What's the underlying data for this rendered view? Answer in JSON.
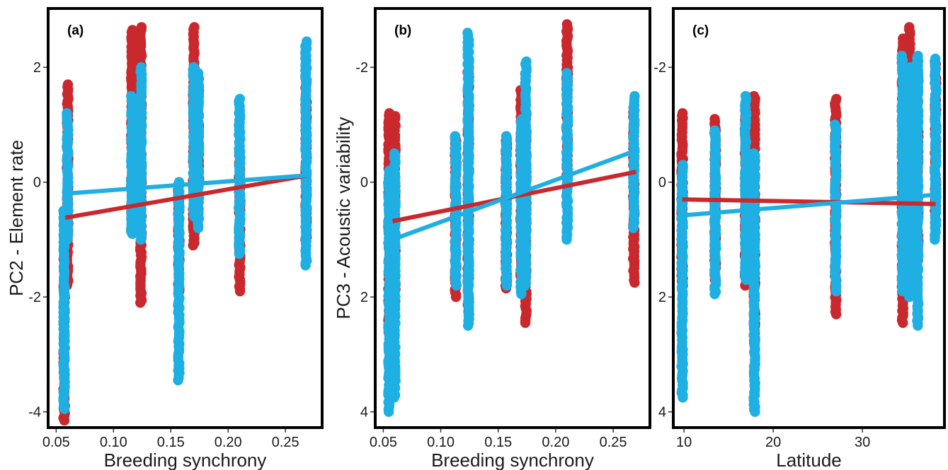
{
  "chart_data": [
    {
      "type": "scatter",
      "panel_label": "(a)",
      "xlabel": "Breeding synchrony",
      "ylabel": "PC2 - Element rate",
      "xlim": [
        0.043,
        0.282
      ],
      "ylim": [
        -4.25,
        3.0
      ],
      "y_reversed": false,
      "xticks": [
        0.05,
        0.1,
        0.15,
        0.2,
        0.25
      ],
      "xtick_labels": [
        "0.05",
        "0.10",
        "0.15",
        "0.20",
        "0.25"
      ],
      "yticks": [
        2,
        0,
        -2,
        -4
      ],
      "ytick_labels": [
        "2",
        "0",
        "-2",
        "-4"
      ],
      "grid": false,
      "series": [
        {
          "color": "#c9282d",
          "groups": [
            {
              "x": 0.057,
              "min": -4.15,
              "max": -0.5
            },
            {
              "x": 0.06,
              "min": -1.8,
              "max": 1.7
            },
            {
              "x": 0.116,
              "min": -0.9,
              "max": 2.65
            },
            {
              "x": 0.124,
              "min": -2.1,
              "max": 2.7
            },
            {
              "x": 0.157,
              "min": -1.9,
              "max": 0.0
            },
            {
              "x": 0.17,
              "min": -1.1,
              "max": 2.7
            },
            {
              "x": 0.174,
              "min": -0.6,
              "max": 1.8
            },
            {
              "x": 0.21,
              "min": -1.9,
              "max": 0.55
            },
            {
              "x": 0.268,
              "min": -1.0,
              "max": 1.85
            }
          ],
          "fit": {
            "x": [
              0.058,
              0.27
            ],
            "y": [
              -0.62,
              0.12
            ]
          }
        },
        {
          "color": "#1fafe3",
          "groups": [
            {
              "x": 0.057,
              "min": -3.95,
              "max": -0.5
            },
            {
              "x": 0.06,
              "min": -1.0,
              "max": 1.2
            },
            {
              "x": 0.116,
              "min": -0.9,
              "max": 1.5
            },
            {
              "x": 0.124,
              "min": -1.0,
              "max": 2.0
            },
            {
              "x": 0.157,
              "min": -3.45,
              "max": 0.0
            },
            {
              "x": 0.17,
              "min": -0.6,
              "max": 2.0
            },
            {
              "x": 0.174,
              "min": -0.8,
              "max": 1.9
            },
            {
              "x": 0.21,
              "min": -1.25,
              "max": 1.45
            },
            {
              "x": 0.268,
              "min": -1.45,
              "max": 2.45
            }
          ],
          "fit": {
            "x": [
              0.058,
              0.27
            ],
            "y": [
              -0.2,
              0.12
            ]
          }
        }
      ]
    },
    {
      "type": "scatter",
      "panel_label": "(b)",
      "xlabel": "Breeding synchrony",
      "ylabel": "PC3 - Acoustic variability",
      "xlim": [
        0.043,
        0.282
      ],
      "ylim": [
        -3.0,
        4.25
      ],
      "y_reversed": true,
      "xticks": [
        0.05,
        0.1,
        0.15,
        0.2,
        0.25
      ],
      "xtick_labels": [
        "0.05",
        "0.10",
        "0.15",
        "0.20",
        "0.25"
      ],
      "yticks": [
        -2,
        0,
        2,
        4
      ],
      "ytick_labels": [
        "-2",
        "0",
        "2",
        "4"
      ],
      "grid": false,
      "series": [
        {
          "color": "#c9282d",
          "groups": [
            {
              "x": 0.055,
              "min": -1.2,
              "max": 2.7
            },
            {
              "x": 0.06,
              "min": -1.15,
              "max": 2.2
            },
            {
              "x": 0.113,
              "min": -0.8,
              "max": 2.0
            },
            {
              "x": 0.124,
              "min": -2.0,
              "max": 2.3
            },
            {
              "x": 0.157,
              "min": -0.8,
              "max": 1.85
            },
            {
              "x": 0.17,
              "min": -1.6,
              "max": 1.8
            },
            {
              "x": 0.174,
              "min": -1.1,
              "max": 2.45
            },
            {
              "x": 0.21,
              "min": -2.75,
              "max": 0.0
            },
            {
              "x": 0.268,
              "min": -1.3,
              "max": 1.75
            }
          ],
          "fit": {
            "x": [
              0.058,
              0.27
            ],
            "y": [
              0.68,
              -0.18
            ]
          }
        },
        {
          "color": "#1fafe3",
          "groups": [
            {
              "x": 0.055,
              "min": -0.2,
              "max": 4.0
            },
            {
              "x": 0.06,
              "min": -0.5,
              "max": 3.75
            },
            {
              "x": 0.113,
              "min": -0.8,
              "max": 1.8
            },
            {
              "x": 0.124,
              "min": -2.6,
              "max": 2.5
            },
            {
              "x": 0.157,
              "min": -0.8,
              "max": 1.8
            },
            {
              "x": 0.17,
              "min": -1.1,
              "max": 1.95
            },
            {
              "x": 0.174,
              "min": -2.1,
              "max": 1.8
            },
            {
              "x": 0.21,
              "min": -1.9,
              "max": 1.0
            },
            {
              "x": 0.268,
              "min": -1.5,
              "max": 0.8
            }
          ],
          "fit": {
            "x": [
              0.058,
              0.27
            ],
            "y": [
              1.0,
              -0.55
            ]
          }
        }
      ]
    },
    {
      "type": "scatter",
      "panel_label": "(c)",
      "xlabel": "Latitude",
      "ylabel": "",
      "xlim": [
        8.8,
        39.2
      ],
      "ylim": [
        -3.0,
        4.25
      ],
      "y_reversed": true,
      "xticks": [
        10,
        20,
        30
      ],
      "xtick_labels": [
        "10",
        "20",
        "30"
      ],
      "yticks": [
        -2,
        0,
        2,
        4
      ],
      "ytick_labels": [
        "-2",
        "0",
        "2",
        "4"
      ],
      "grid": false,
      "series": [
        {
          "color": "#c9282d",
          "groups": [
            {
              "x": 9.8,
              "min": -1.2,
              "max": 1.8
            },
            {
              "x": 13.5,
              "min": -1.1,
              "max": 1.7
            },
            {
              "x": 16.9,
              "min": -1.3,
              "max": 1.8
            },
            {
              "x": 17.9,
              "min": -1.5,
              "max": 2.8
            },
            {
              "x": 27.0,
              "min": -1.45,
              "max": 2.3
            },
            {
              "x": 34.5,
              "min": -2.5,
              "max": 2.45
            },
            {
              "x": 35.3,
              "min": -2.7,
              "max": 1.0
            },
            {
              "x": 36.2,
              "min": -1.8,
              "max": 1.4
            },
            {
              "x": 38.2,
              "min": -2.1,
              "max": 0.5
            }
          ],
          "fit": {
            "x": [
              9.8,
              38.2
            ],
            "y": [
              0.3,
              0.38
            ]
          }
        },
        {
          "color": "#1fafe3",
          "groups": [
            {
              "x": 9.8,
              "min": -0.3,
              "max": 3.75
            },
            {
              "x": 13.5,
              "min": -0.9,
              "max": 1.95
            },
            {
              "x": 16.9,
              "min": -1.5,
              "max": 1.7
            },
            {
              "x": 17.9,
              "min": -0.5,
              "max": 4.0
            },
            {
              "x": 27.0,
              "min": -1.0,
              "max": 1.9
            },
            {
              "x": 34.5,
              "min": -2.2,
              "max": 1.9
            },
            {
              "x": 35.3,
              "min": -2.0,
              "max": 2.0
            },
            {
              "x": 36.2,
              "min": -2.2,
              "max": 2.5
            },
            {
              "x": 38.2,
              "min": -2.15,
              "max": 1.0
            }
          ],
          "fit": {
            "x": [
              9.8,
              38.2
            ],
            "y": [
              0.58,
              0.22
            ]
          }
        }
      ]
    }
  ]
}
